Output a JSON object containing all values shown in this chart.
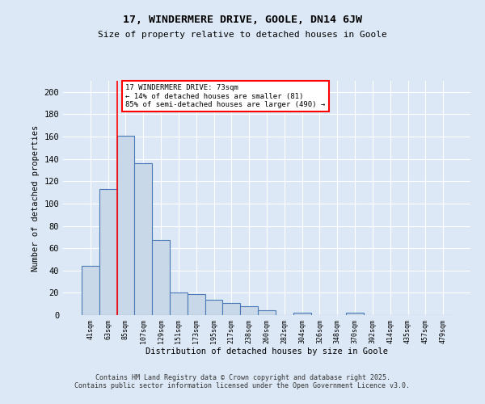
{
  "title1": "17, WINDERMERE DRIVE, GOOLE, DN14 6JW",
  "title2": "Size of property relative to detached houses in Goole",
  "xlabel": "Distribution of detached houses by size in Goole",
  "ylabel": "Number of detached properties",
  "categories": [
    "41sqm",
    "63sqm",
    "85sqm",
    "107sqm",
    "129sqm",
    "151sqm",
    "173sqm",
    "195sqm",
    "217sqm",
    "238sqm",
    "260sqm",
    "282sqm",
    "304sqm",
    "326sqm",
    "348sqm",
    "370sqm",
    "392sqm",
    "414sqm",
    "435sqm",
    "457sqm",
    "479sqm"
  ],
  "values": [
    44,
    113,
    161,
    136,
    67,
    20,
    19,
    14,
    11,
    8,
    4,
    0,
    2,
    0,
    0,
    2,
    0,
    0,
    0,
    0,
    0
  ],
  "bar_color": "#c8d8e8",
  "bar_edge_color": "#4a7ab5",
  "red_line_x": 1.5,
  "annotation_text": "17 WINDERMERE DRIVE: 73sqm\n← 14% of detached houses are smaller (81)\n85% of semi-detached houses are larger (490) →",
  "annotation_box_color": "white",
  "annotation_box_edge_color": "red",
  "ylim": [
    0,
    210
  ],
  "yticks": [
    0,
    20,
    40,
    60,
    80,
    100,
    120,
    140,
    160,
    180,
    200
  ],
  "footer_line1": "Contains HM Land Registry data © Crown copyright and database right 2025.",
  "footer_line2": "Contains public sector information licensed under the Open Government Licence v3.0.",
  "background_color": "#dce8f5"
}
